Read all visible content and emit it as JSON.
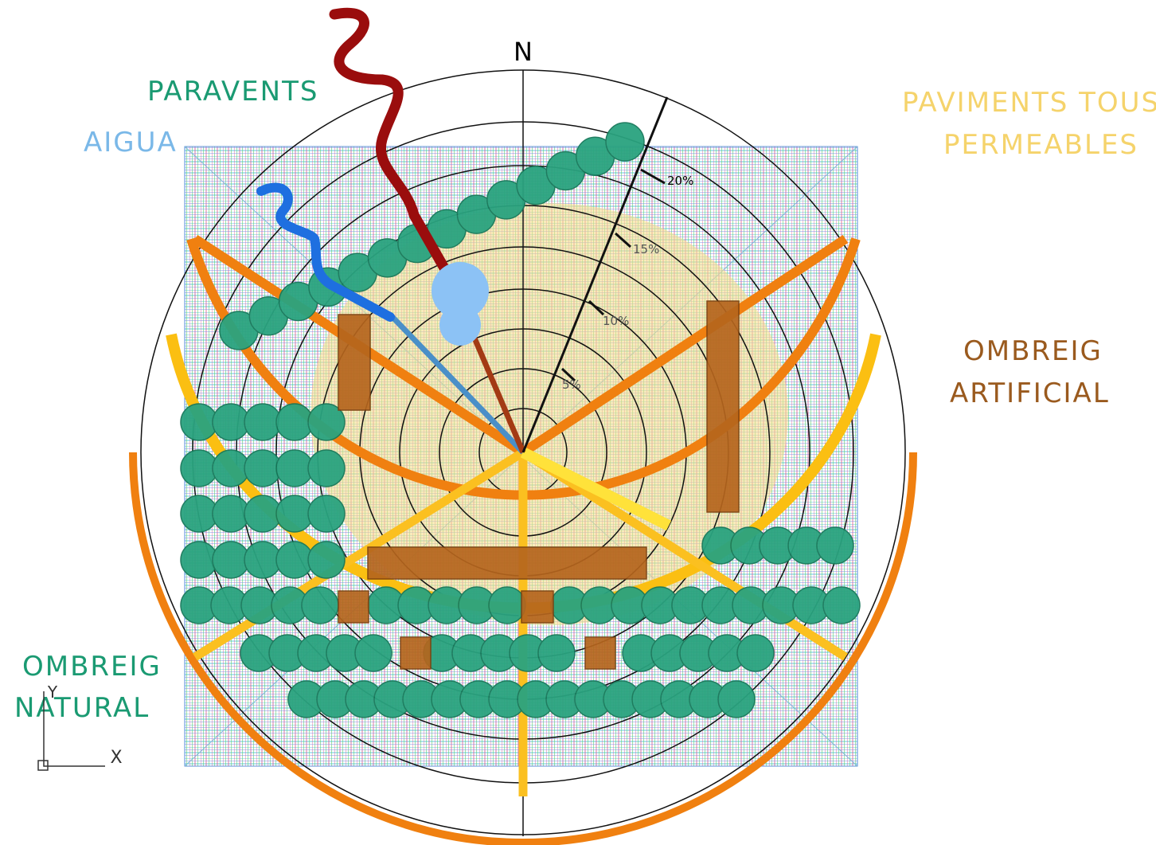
{
  "compass": {
    "north": "N",
    "slope_labels": [
      "20%",
      "15%",
      "10%",
      "5%"
    ]
  },
  "legend": {
    "paravents": "PARAVENTS",
    "aigua": "AIGUA",
    "paviments": [
      "PAVIMENTS TOUS I",
      "PERMEABLES"
    ],
    "ombreig_artificial": [
      "OMBREIG",
      "ARTIFICIAL"
    ],
    "ombreig_natural": [
      "OMBREIG",
      "NATURAL"
    ]
  },
  "ucs": {
    "x": "X",
    "y": "Y"
  }
}
